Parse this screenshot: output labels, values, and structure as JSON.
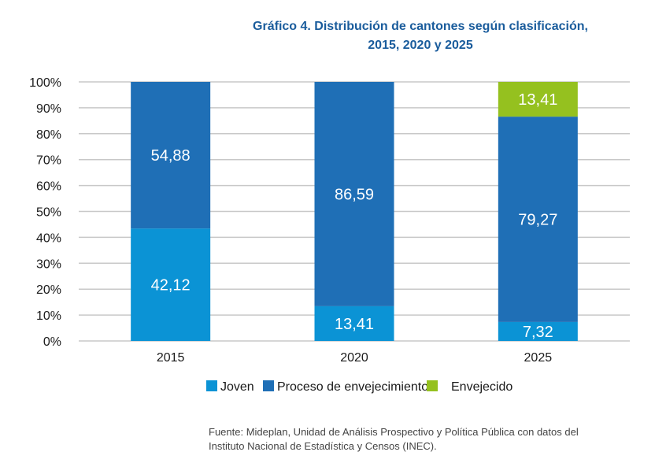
{
  "chart_data": {
    "type": "bar",
    "stacked": true,
    "normalized_percent": true,
    "title_lines": [
      "Gráfico 4. Distribución de cantones según clasificación,",
      "2015, 2020 y 2025"
    ],
    "categories": [
      "2015",
      "2020",
      "2025"
    ],
    "series": [
      {
        "name": "Joven",
        "values": [
          42.12,
          13.41,
          7.32
        ],
        "labels": [
          "42,12",
          "13,41",
          "7,32"
        ],
        "color": "#0b93d5"
      },
      {
        "name": "Proceso de envejecimiento",
        "values": [
          54.88,
          86.59,
          79.27
        ],
        "labels": [
          "54,88",
          "86,59",
          "79,27"
        ],
        "color": "#1f6fb6"
      },
      {
        "name": "Envejecido",
        "values": [
          0,
          0,
          13.41
        ],
        "labels": [
          "",
          "",
          "13,41"
        ],
        "color": "#95c11f"
      }
    ],
    "ylim": [
      0,
      100
    ],
    "yticks": [
      "0%",
      "10%",
      "20%",
      "30%",
      "40%",
      "50%",
      "60%",
      "70%",
      "80%",
      "90%",
      "100%"
    ],
    "grid": true,
    "legend_position": "bottom",
    "source_lines": [
      "Fuente: Mideplan, Unidad de Análisis Prospectivo y Política Pública con datos del",
      "Instituto Nacional de Estadística y Censos (INEC)."
    ]
  }
}
